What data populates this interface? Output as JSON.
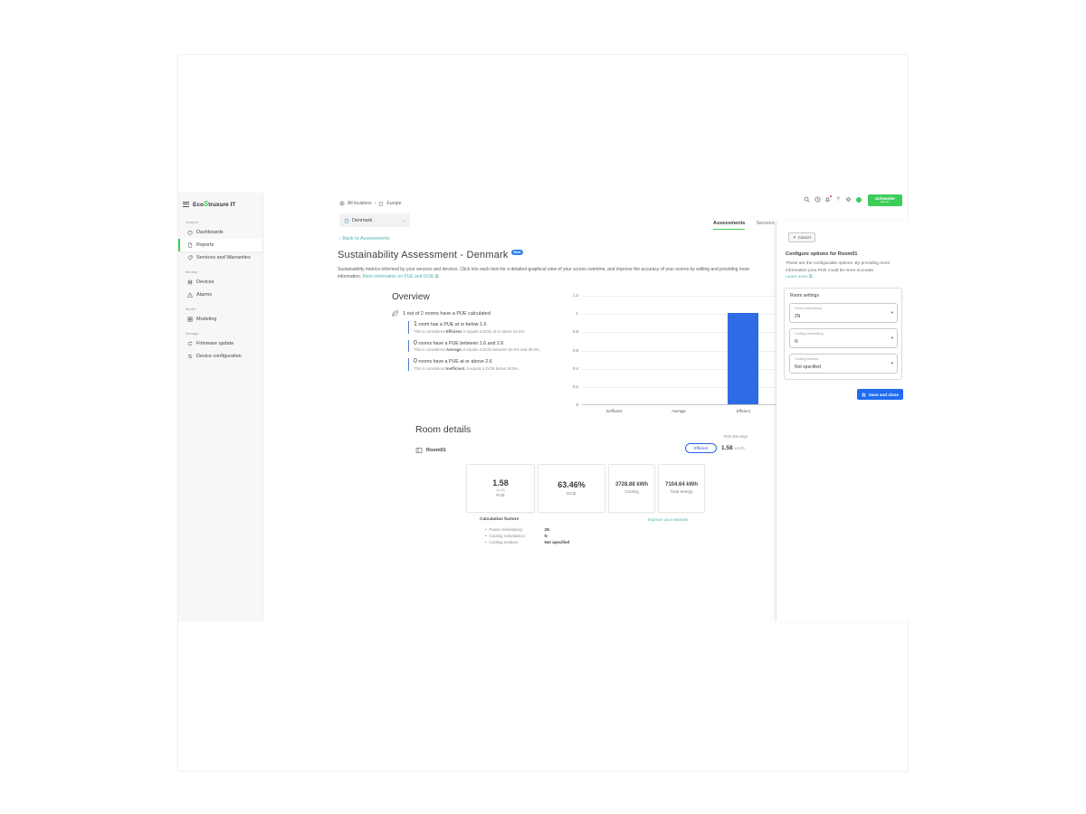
{
  "glyphs": {
    "chevron_right": "›",
    "chevron_left": "‹",
    "chevron_down": "⌄",
    "caret_down": "▾",
    "external": "⧉",
    "close": "✕",
    "help": "?"
  },
  "app": {
    "logo_prefix": "Eco",
    "logo_glyph": "S",
    "logo_suffix": "truxure IT"
  },
  "topbar": {
    "icons": [
      "search-icon",
      "history-icon",
      "notifications-icon",
      "help-icon",
      "settings-icon",
      "user-status-icon"
    ],
    "brand": "Schneider",
    "brand_sub": "Electric"
  },
  "sidebar": {
    "sections": [
      {
        "label": "Analyze",
        "items": [
          {
            "label": "Dashboards"
          },
          {
            "label": "Reports"
          },
          {
            "label": "Services and Warranties"
          }
        ]
      },
      {
        "label": "Monitor",
        "items": [
          {
            "label": "Devices"
          },
          {
            "label": "Alarms"
          }
        ]
      },
      {
        "label": "Model",
        "items": [
          {
            "label": "Modeling"
          }
        ]
      },
      {
        "label": "Manage",
        "items": [
          {
            "label": "Firmware update"
          },
          {
            "label": "Device configuration"
          }
        ]
      }
    ]
  },
  "breadcrumb": {
    "root": "All locations",
    "current": "Europe"
  },
  "location_select": {
    "value": "Denmark"
  },
  "tabs": [
    {
      "label": "Assessments"
    },
    {
      "label": "Sensors"
    }
  ],
  "back_link": "Back to Assessments",
  "page": {
    "title": "Sustainability Assessment - Denmark",
    "badge": "New",
    "description": "Sustainability metrics informed by your sensors and devices. Click into each item for a detailed graphical view of your scores overtime, and improve the accuracy of your scores by editing and providing more information.",
    "info_link": "More information on PUE and DCiE"
  },
  "overview": {
    "heading": "Overview",
    "summary": "1 out of 2 rooms have a PUE calculated",
    "bullets": [
      {
        "count": "1",
        "text": " room has a PUE at or below 1.6",
        "desc_prefix": "This is considered ",
        "keyword": "Efficient.",
        "desc_suffix": " It equals a DCiE at or above 62.5%."
      },
      {
        "count": "0",
        "text": " rooms have a PUE between 1.6 and 2.6",
        "desc_prefix": "This is considered ",
        "keyword": "Average.",
        "desc_suffix": " It equals a DCiE between 62.5% and 38.5%."
      },
      {
        "count": "0",
        "text": " rooms have a PUE at or above 2.6",
        "desc_prefix": "This is considered ",
        "keyword": "Inefficient.",
        "desc_suffix": " It equals a DCiE below 38.5%."
      }
    ]
  },
  "chart_data": {
    "type": "bar",
    "categories": [
      "Inefficient",
      "Average",
      "Efficient"
    ],
    "values": [
      0,
      0,
      1
    ],
    "title": "",
    "xlabel": "",
    "ylabel": "",
    "ylim": [
      0,
      1.2
    ],
    "yticks": [
      "0",
      "0.2",
      "0.4",
      "0.6",
      "0.8",
      "1",
      "1.2"
    ],
    "grid": true,
    "legend": false,
    "bar_color": "#2e6be4"
  },
  "room_details": {
    "heading": "Room details",
    "period": "Past 365 days",
    "room": {
      "name": "Room01",
      "status": "Efficient",
      "value": "1.58",
      "uncertainty": "±0.26"
    },
    "cards": [
      {
        "value": "1.58",
        "sub": "±0.26",
        "label": "PUE"
      },
      {
        "value": "63.46%",
        "label": "DCiE"
      },
      {
        "value": "3728.88 kWh",
        "label": "Cooling"
      },
      {
        "value": "7104.64 kWh",
        "label": "Total energy"
      }
    ],
    "calc": {
      "heading": "Calculation factors",
      "link": "Improve your estimate",
      "factors": [
        {
          "label": "Power redundancy:",
          "value": "2N"
        },
        {
          "label": "Cooling redundancy:",
          "value": "N"
        },
        {
          "label": "Cooling medium:",
          "value": "Not specified"
        }
      ]
    }
  },
  "panel": {
    "cancel": "Cancel",
    "heading": "Configure options for Room01",
    "description": "These are the configurable options. By providing more information your PUE could be more accurate.",
    "learn_more": "Learn more",
    "card_title": "Room settings",
    "fields": [
      {
        "label": "Power redundancy",
        "value": "2N"
      },
      {
        "label": "Cooling redundancy",
        "value": "N"
      },
      {
        "label": "Cooling medium",
        "value": "Not specified"
      }
    ],
    "save": "Save and close"
  }
}
